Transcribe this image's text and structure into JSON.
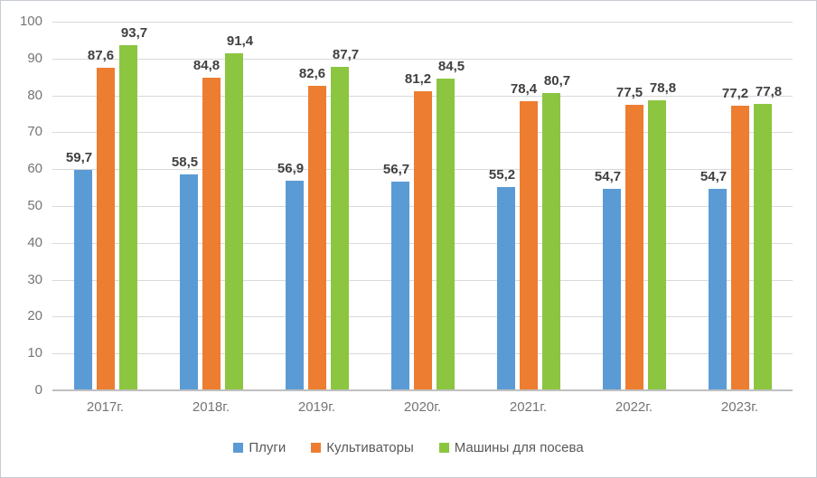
{
  "chart_data": {
    "type": "bar",
    "title": "",
    "categories": [
      "2017г.",
      "2018г.",
      "2019г.",
      "2020г.",
      "2021г.",
      "2022г.",
      "2023г."
    ],
    "series": [
      {
        "name": "Плуги",
        "color": "#5B9BD5",
        "values": [
          59.7,
          58.5,
          56.9,
          56.7,
          55.2,
          54.7,
          54.7
        ]
      },
      {
        "name": "Культиваторы",
        "color": "#ED7D31",
        "values": [
          87.6,
          84.8,
          82.6,
          81.2,
          78.4,
          77.5,
          77.2
        ]
      },
      {
        "name": "Машины для посева",
        "color": "#8CC540",
        "values": [
          93.7,
          91.4,
          87.7,
          84.5,
          80.7,
          78.8,
          77.8
        ]
      }
    ],
    "ylim": [
      0,
      100
    ],
    "ytick_step": 10,
    "ytick_labels": [
      "0",
      "10",
      "20",
      "30",
      "40",
      "50",
      "60",
      "70",
      "80",
      "90",
      "100"
    ],
    "grid": true,
    "legend_position": "bottom",
    "decimal_separator": ",",
    "data_labels_visible": true
  },
  "colors": {
    "background": "#ffffff",
    "gridline": "#d9d9d9",
    "axis_line": "#bfbfbf",
    "tick_text": "#757575",
    "data_label_text": "#404040",
    "legend_text": "#595959"
  }
}
